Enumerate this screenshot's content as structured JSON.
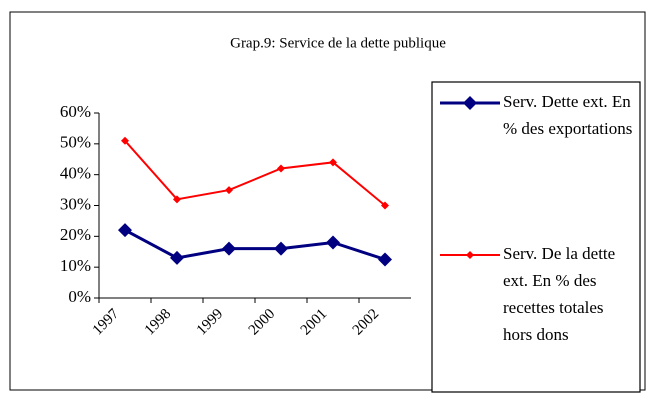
{
  "chart_data": {
    "type": "line",
    "title": "Grap.9: Service de la dette publique",
    "categories": [
      "1997",
      "1998",
      "1999",
      "2000",
      "2001",
      "2002"
    ],
    "series": [
      {
        "name": "Serv. Dette ext. En % des exportations",
        "color": "#000080",
        "values": [
          22,
          13,
          16,
          16,
          18,
          12.5
        ]
      },
      {
        "name": "Serv. De la dette ext. En % des recettes totales hors dons",
        "color": "#ff0000",
        "values": [
          51,
          32,
          35,
          42,
          44,
          30
        ]
      }
    ],
    "ylim": [
      0,
      60
    ],
    "yticks": [
      {
        "value": 0,
        "label": "0%"
      },
      {
        "value": 10,
        "label": "10%"
      },
      {
        "value": 20,
        "label": "20%"
      },
      {
        "value": 30,
        "label": "30%"
      },
      {
        "value": 40,
        "label": "40%"
      },
      {
        "value": 50,
        "label": "50%"
      },
      {
        "value": 60,
        "label": "60%"
      }
    ],
    "legend": "right"
  }
}
